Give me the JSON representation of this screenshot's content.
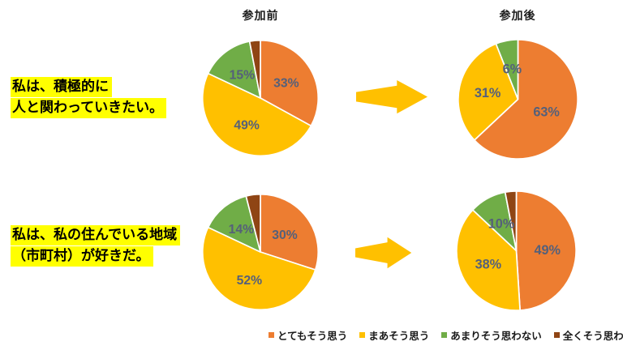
{
  "headers": {
    "before": "参加前",
    "after": "参加後"
  },
  "questions": [
    {
      "lines": [
        "私は、積極的に",
        "人と関わっていきたい。"
      ]
    },
    {
      "lines": [
        "私は、私の住んでいる地域",
        "（市町村）が好きだ。"
      ]
    }
  ],
  "legend": {
    "position": "bottom-right",
    "items": [
      {
        "label": "とてもそう思う",
        "color": "#ED7D31"
      },
      {
        "label": "まあそう思う",
        "color": "#FFC000"
      },
      {
        "label": "あまりそう思わない",
        "color": "#70AD47"
      },
      {
        "label": "全くそう思わない",
        "color": "#8F4514"
      }
    ]
  },
  "style": {
    "background": "#FFFFFF",
    "percent_label_color": "#55607A",
    "arrow_color": "#FFC000",
    "highlight_color": "#FFFF00",
    "slice_border_color": "#FFFFFF"
  },
  "chart_data": [
    {
      "type": "pie",
      "id": "q1-before",
      "question": "私は、積極的に人と関わっていきたい。",
      "stage": "参加前",
      "categories": [
        "とてもそう思う",
        "まあそう思う",
        "あまりそう思わない",
        "全くそう思わない"
      ],
      "values": [
        33,
        49,
        15,
        3
      ],
      "labels": [
        "33%",
        "49%",
        "15%",
        ""
      ],
      "start_angle_deg": 0,
      "direction": "clockwise"
    },
    {
      "type": "pie",
      "id": "q1-after",
      "question": "私は、積極的に人と関わっていきたい。",
      "stage": "参加後",
      "categories": [
        "とてもそう思う",
        "まあそう思う",
        "あまりそう思わない",
        "全くそう思わない"
      ],
      "values": [
        63,
        31,
        6,
        0
      ],
      "labels": [
        "63%",
        "31%",
        "6%",
        ""
      ],
      "start_angle_deg": 0,
      "direction": "clockwise"
    },
    {
      "type": "pie",
      "id": "q2-before",
      "question": "私は、私の住んでいる地域（市町村）が好きだ。",
      "stage": "参加前",
      "categories": [
        "とてもそう思う",
        "まあそう思う",
        "あまりそう思わない",
        "全くそう思わない"
      ],
      "values": [
        30,
        52,
        14,
        4
      ],
      "labels": [
        "30%",
        "52%",
        "14%",
        ""
      ],
      "start_angle_deg": 0,
      "direction": "clockwise"
    },
    {
      "type": "pie",
      "id": "q2-after",
      "question": "私は、私の住んでいる地域（市町村）が好きだ。",
      "stage": "参加後",
      "categories": [
        "とてもそう思う",
        "まあそう思う",
        "あまりそう思わない",
        "全くそう思わない"
      ],
      "values": [
        49,
        38,
        10,
        3
      ],
      "labels": [
        "49%",
        "38%",
        "10%",
        ""
      ],
      "start_angle_deg": 0,
      "direction": "clockwise"
    }
  ]
}
